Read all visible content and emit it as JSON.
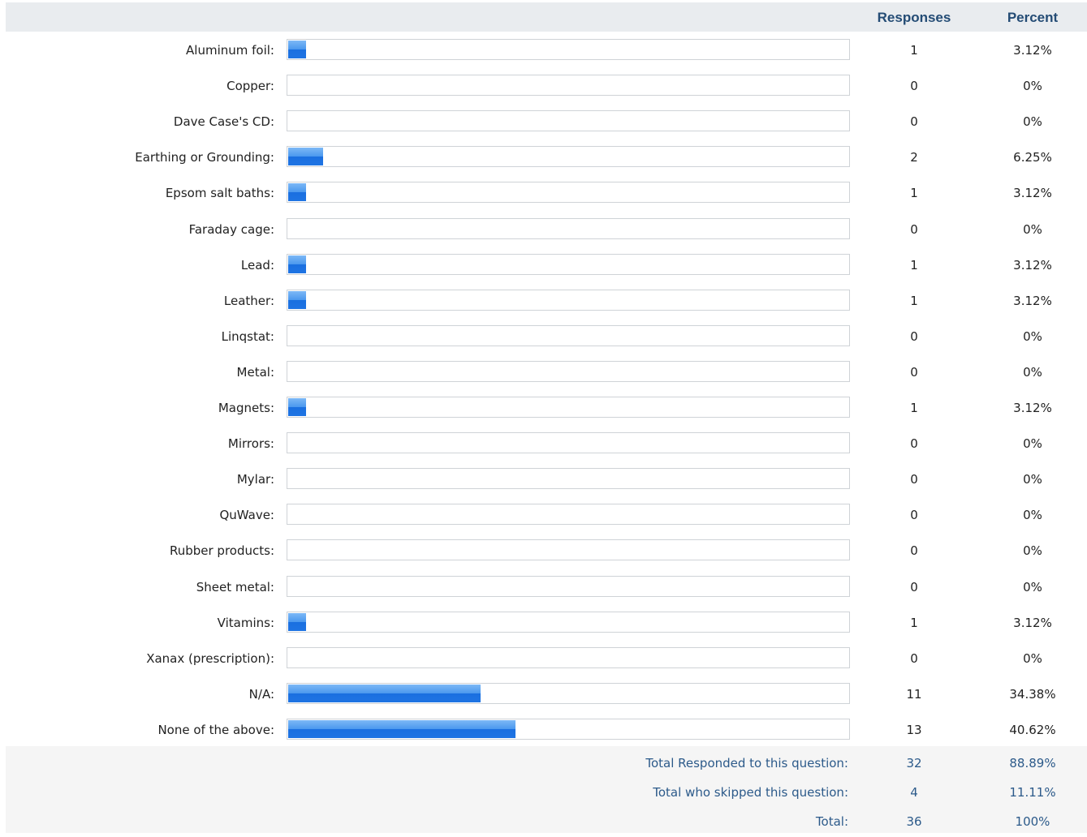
{
  "header": {
    "responses": "Responses",
    "percent": "Percent"
  },
  "chart_data": {
    "type": "bar",
    "orientation": "horizontal",
    "categories": [
      "Aluminum foil:",
      "Copper:",
      "Dave Case's CD:",
      "Earthing or Grounding:",
      "Epsom salt baths:",
      "Faraday cage:",
      "Lead:",
      "Leather:",
      "Linqstat:",
      "Metal:",
      "Magnets:",
      "Mirrors:",
      "Mylar:",
      "QuWave:",
      "Rubber products:",
      "Sheet metal:",
      "Vitamins:",
      "Xanax (prescription):",
      "N/A:",
      "None of the above:"
    ],
    "responses": [
      "1",
      "0",
      "0",
      "2",
      "1",
      "0",
      "1",
      "1",
      "0",
      "0",
      "1",
      "0",
      "0",
      "0",
      "0",
      "0",
      "1",
      "0",
      "11",
      "13"
    ],
    "percents": [
      "3.12%",
      "0%",
      "0%",
      "6.25%",
      "3.12%",
      "0%",
      "3.12%",
      "3.12%",
      "0%",
      "0%",
      "3.12%",
      "0%",
      "0%",
      "0%",
      "0%",
      "0%",
      "3.12%",
      "0%",
      "34.38%",
      "40.62%"
    ],
    "values": [
      3.12,
      0,
      0,
      6.25,
      3.12,
      0,
      3.12,
      3.12,
      0,
      0,
      3.12,
      0,
      0,
      0,
      0,
      0,
      3.12,
      0,
      34.38,
      40.62
    ],
    "xlim": [
      0,
      100
    ],
    "bar_color": "#2f80e6"
  },
  "totals": [
    {
      "label": "Total Responded to this question:",
      "responses": "32",
      "percent": "88.89%"
    },
    {
      "label": "Total who skipped this question:",
      "responses": "4",
      "percent": "11.11%"
    },
    {
      "label": "Total:",
      "responses": "36",
      "percent": "100%"
    }
  ]
}
